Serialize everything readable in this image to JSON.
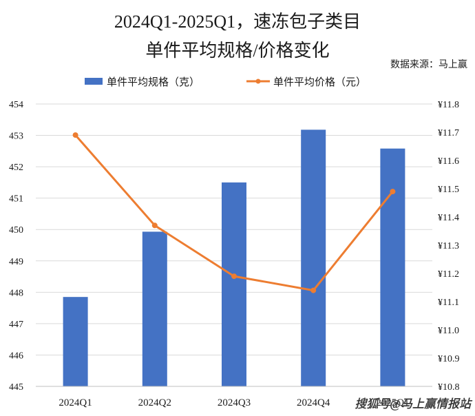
{
  "chart_data": {
    "type": "bar+line",
    "title_lines": [
      "2024Q1-2025Q1，速冻包子类目",
      "单件平均规格/价格变化"
    ],
    "source": "数据来源：马上赢",
    "categories": [
      "2024Q1",
      "2024Q2",
      "2024Q3",
      "2024Q4",
      "2025Q1"
    ],
    "series": [
      {
        "name": "单件平均规格（克）",
        "type": "bar",
        "axis": "left",
        "values": [
          447.85,
          449.93,
          451.5,
          453.18,
          452.58
        ]
      },
      {
        "name": "单件平均价格（元）",
        "type": "line",
        "axis": "right",
        "values": [
          11.69,
          11.37,
          11.19,
          11.14,
          11.49
        ]
      }
    ],
    "y_left": {
      "min": 445,
      "max": 454,
      "ticks": [
        "445",
        "446",
        "447",
        "448",
        "449",
        "450",
        "451",
        "452",
        "453",
        "454"
      ]
    },
    "y_right": {
      "min": 10.8,
      "max": 11.8,
      "ticks": [
        "¥10.8",
        "¥10.9",
        "¥11.0",
        "¥11.1",
        "¥11.2",
        "¥11.3",
        "¥11.4",
        "¥11.5",
        "¥11.6",
        "¥11.7",
        "¥11.8"
      ]
    },
    "grid": true,
    "legend_position": "top-center",
    "colors": {
      "bar": "#4472C4",
      "line": "#ED7D31",
      "grid": "#d9d9d9"
    }
  },
  "watermark": "搜狐号@马上赢情报站"
}
